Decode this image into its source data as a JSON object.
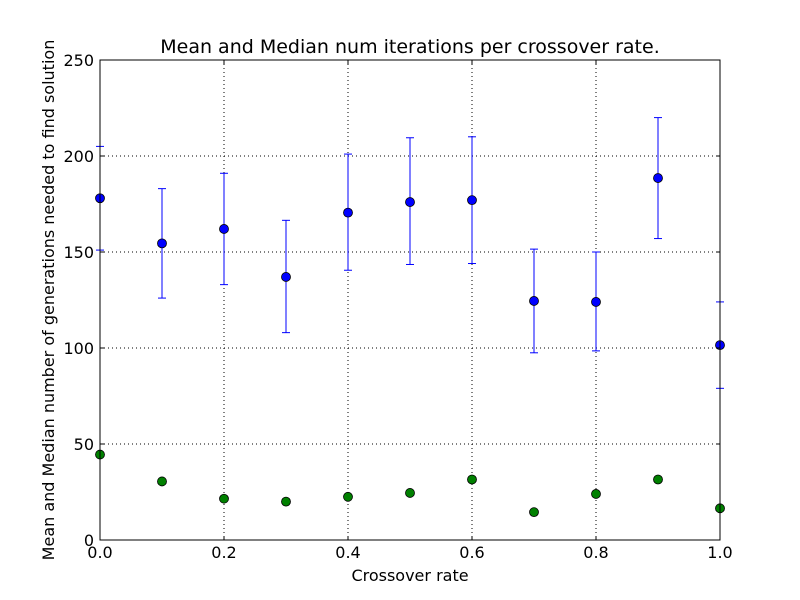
{
  "chart_data": {
    "type": "scatter",
    "title": "Mean and Median num iterations per crossover rate.",
    "xlabel": "Crossover rate",
    "ylabel": "Mean and Median number of generations needed to find solution",
    "xlim": [
      0.0,
      1.0
    ],
    "ylim": [
      0,
      250
    ],
    "x_ticks": [
      "0.0",
      "0.2",
      "0.4",
      "0.6",
      "0.8",
      "1.0"
    ],
    "y_ticks": [
      "0",
      "50",
      "100",
      "150",
      "200",
      "250"
    ],
    "grid": true,
    "x": [
      0.0,
      0.1,
      0.2,
      0.3,
      0.4,
      0.5,
      0.6,
      0.7,
      0.8,
      0.9,
      1.0
    ],
    "series": [
      {
        "color": "#0000ff",
        "marker": "circle",
        "error_bars": true,
        "values": [
          178,
          154.5,
          162,
          137,
          170.5,
          176,
          177,
          124.5,
          124,
          188.5,
          101.5
        ],
        "error_low": [
          151,
          126,
          133,
          108,
          140.5,
          143.5,
          144,
          97.5,
          98.5,
          157,
          79
        ],
        "error_high": [
          205,
          183,
          191,
          166.5,
          201,
          209.5,
          210,
          151.5,
          150,
          220,
          124
        ]
      },
      {
        "color": "#008000",
        "marker": "circle",
        "error_bars": false,
        "values": [
          44.5,
          30.5,
          21.5,
          20,
          22.5,
          24.5,
          31.5,
          14.5,
          24,
          31.5,
          16.5
        ]
      }
    ]
  }
}
